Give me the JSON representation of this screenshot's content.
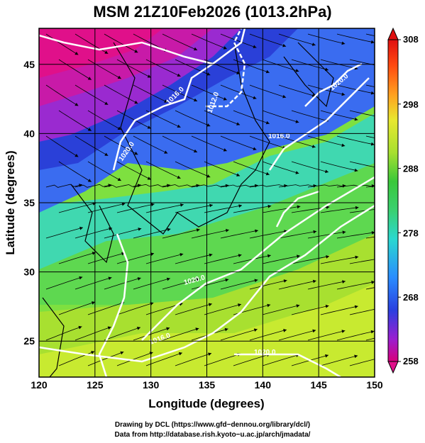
{
  "title": "MSM 21Z10Feb2026 (1013.2hPa)",
  "map": {
    "x_axis": {
      "label": "Longitude (degrees)",
      "range": [
        120,
        150
      ],
      "ticks": [
        "120",
        "125",
        "130",
        "135",
        "140",
        "145",
        "150"
      ]
    },
    "y_axis": {
      "label": "Latitude  (degrees)",
      "range": [
        22.4,
        47.6
      ],
      "ticks": [
        "25",
        "30",
        "35",
        "40",
        "45"
      ]
    },
    "grid": "on, every 5 degrees",
    "field": "temperature (K) with wind streamlines",
    "isobars": [
      "1020.0",
      "1016.0",
      "1012.0",
      "1016.0",
      "1020.0",
      "1020.0",
      "1016.0",
      "1020.0"
    ]
  },
  "colorbar": {
    "min": 258,
    "max": 308,
    "ticks": [
      "308",
      "298",
      "288",
      "278",
      "268",
      "258"
    ],
    "colors": [
      "#d8007a",
      "#9a1fd0",
      "#2a40e0",
      "#2a8cff",
      "#2ad8d0",
      "#3ad070",
      "#3ac83a",
      "#a8e030",
      "#e8e830",
      "#ffa020",
      "#ff4a10",
      "#e01010"
    ]
  },
  "credits": {
    "line1": "Drawing by DCL (https://www.gfd−dennou.org/library/dcl/)",
    "line2": "Data from http://database.rish.kyoto−u.ac.jp/arch/jmadata/"
  }
}
